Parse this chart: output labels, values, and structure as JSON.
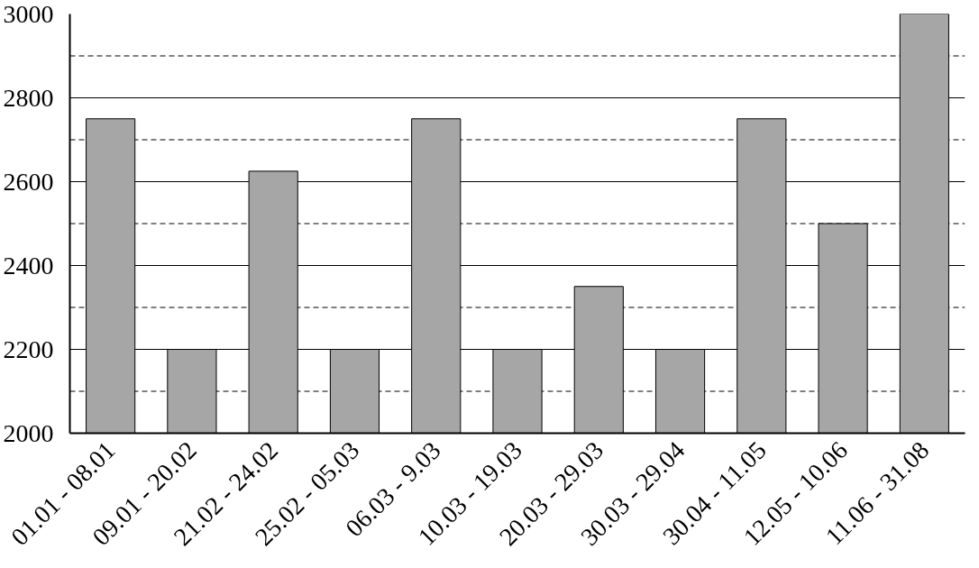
{
  "chart_data": {
    "type": "bar",
    "categories": [
      "01.01 - 08.01",
      "09.01 - 20.02",
      "21.02 - 24.02",
      "25.02 - 05.03",
      "06.03 - 9.03",
      "10.03 - 19.03",
      "20.03 - 29.03",
      "30.03 - 29.04",
      "30.04 - 11.05",
      "12.05 - 10.06",
      "11.06 - 31.08"
    ],
    "values": [
      2750,
      2200,
      2625,
      2200,
      2750,
      2200,
      2350,
      2200,
      2750,
      2500,
      3000
    ],
    "color": "#a6a6a6",
    "ylim": [
      2000,
      3000
    ],
    "yticks": [
      2000,
      2200,
      2400,
      2600,
      2800,
      3000
    ],
    "grid": "y",
    "ref_lines": [
      {
        "axis": "y",
        "value": 2100,
        "line_style": "dashed"
      },
      {
        "axis": "y",
        "value": 2300,
        "line_style": "dashed"
      },
      {
        "axis": "y",
        "value": 2500,
        "line_style": "dashed"
      },
      {
        "axis": "y",
        "value": 2700,
        "line_style": "dashed"
      },
      {
        "axis": "y",
        "value": 2900,
        "line_style": "dashed"
      }
    ]
  }
}
